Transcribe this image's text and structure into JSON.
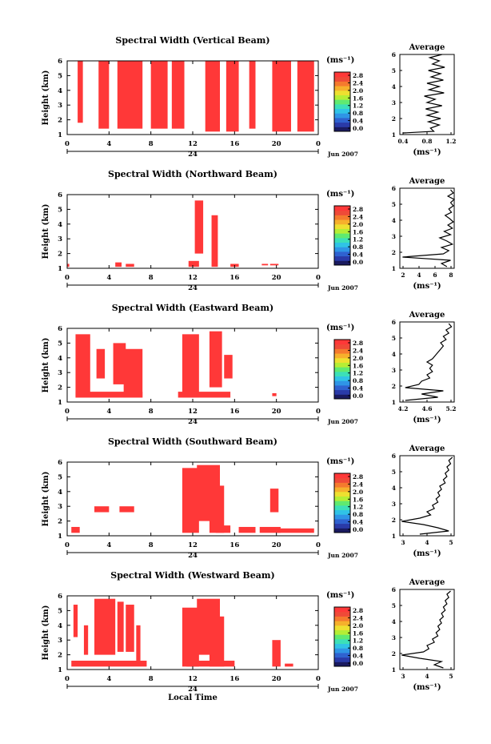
{
  "figure": {
    "xlabel": "Local Time",
    "date_label": "Jun 2007",
    "day_label": "24",
    "ylabel": "Height (km)",
    "avg_title": "Average",
    "unit_label": "(ms⁻¹)",
    "x_ticks": [
      "0",
      "4",
      "8",
      "12",
      "16",
      "20",
      "0"
    ],
    "y_ticks": [
      "1",
      "2",
      "3",
      "4",
      "5",
      "6"
    ],
    "colorbar_ticks": [
      "0.0",
      "0.4",
      "0.8",
      "1.2",
      "1.6",
      "2.0",
      "2.4",
      "2.8"
    ],
    "colorbar_colors": [
      "#1a1a60",
      "#2a3aa8",
      "#2f62d0",
      "#2f95e6",
      "#30c3e6",
      "#3ce0b8",
      "#60ea70",
      "#b5ee35",
      "#eee030",
      "#f6b02c",
      "#f57a2e",
      "#ef4a38",
      "#ff3838"
    ],
    "data_color": "#ff3838"
  },
  "chart_data": [
    {
      "type": "heatmap",
      "title": "Spectral Width (Vertical Beam)",
      "xlabel": "Local Time",
      "ylabel": "Height (km)",
      "xlim": [
        0,
        24
      ],
      "ylim": [
        1,
        6
      ],
      "colorbar": {
        "label": "(ms⁻¹)",
        "range": [
          0,
          2.8
        ]
      },
      "blocks": [
        [
          1,
          1.5,
          1.8,
          6
        ],
        [
          3,
          4,
          1.4,
          6
        ],
        [
          4.8,
          7.2,
          1.4,
          6
        ],
        [
          8,
          9.6,
          1.4,
          6
        ],
        [
          10,
          11.2,
          1.4,
          6
        ],
        [
          13.2,
          14.6,
          1.2,
          6
        ],
        [
          15.2,
          16.4,
          1.2,
          6
        ],
        [
          17.4,
          18,
          1.4,
          6
        ],
        [
          19.6,
          21.4,
          1.2,
          6
        ],
        [
          22,
          23.6,
          1.2,
          6
        ]
      ],
      "mean_value": 2.8,
      "avg_profile": {
        "xlim": [
          0.4,
          1.2
        ],
        "x_ticks": [
          "0.4",
          "0.8",
          "1.2"
        ],
        "height": [
          1.1,
          1.2,
          1.4,
          1.6,
          1.8,
          2.0,
          2.2,
          2.4,
          2.6,
          2.8,
          3.0,
          3.2,
          3.4,
          3.6,
          3.8,
          4.0,
          4.2,
          4.4,
          4.6,
          4.8,
          5.0,
          5.2,
          5.4,
          5.6,
          5.8,
          6.0
        ],
        "width": [
          0.45,
          0.9,
          0.85,
          0.98,
          0.82,
          1.0,
          0.8,
          0.96,
          0.78,
          1.02,
          0.8,
          0.92,
          0.76,
          1.05,
          0.83,
          0.98,
          0.8,
          1.04,
          0.86,
          1.0,
          0.82,
          1.06,
          0.88,
          0.98,
          0.84,
          1.02
        ]
      }
    },
    {
      "type": "heatmap",
      "title": "Spectral Width (Northward Beam)",
      "xlabel": "Local Time",
      "ylabel": "Height (km)",
      "xlim": [
        0,
        24
      ],
      "ylim": [
        1,
        6
      ],
      "colorbar": {
        "label": "(ms⁻¹)",
        "range": [
          0,
          2.8
        ]
      },
      "blocks": [
        [
          0,
          0.2,
          1.1,
          1.3
        ],
        [
          4.6,
          5.2,
          1.1,
          1.4
        ],
        [
          5.6,
          6.4,
          1.1,
          1.3
        ],
        [
          11.6,
          12.6,
          1.1,
          1.5
        ],
        [
          12.2,
          13.0,
          2.0,
          5.6
        ],
        [
          13.8,
          14.4,
          1.1,
          4.6
        ],
        [
          15.6,
          16.4,
          1.1,
          1.3
        ],
        [
          18.6,
          19.2,
          1.2,
          1.3
        ],
        [
          19.4,
          20.2,
          1.2,
          1.3
        ]
      ],
      "mean_value": 2.8,
      "avg_profile": {
        "xlim": [
          2,
          8
        ],
        "x_ticks": [
          "2",
          "4",
          "6",
          "8"
        ],
        "height": [
          1.1,
          1.3,
          1.5,
          1.7,
          1.9,
          2.1,
          2.3,
          2.5,
          2.7,
          2.9,
          3.1,
          3.3,
          3.5,
          3.7,
          3.9,
          4.1,
          4.3,
          4.5,
          4.7,
          4.9,
          5.1,
          5.3,
          5.5,
          5.7,
          5.9
        ],
        "width": [
          7.2,
          6.6,
          7.6,
          2.3,
          6.8,
          7.4,
          6.6,
          7.8,
          7.2,
          6.4,
          7.6,
          6.9,
          7.8,
          7.3,
          7.9,
          7.5,
          7.0,
          7.7,
          7.4,
          7.9,
          7.6,
          8.0,
          7.3,
          7.9,
          7.6
        ]
      }
    },
    {
      "type": "heatmap",
      "title": "Spectral Width (Eastward Beam)",
      "xlabel": "Local Time",
      "ylabel": "Height (km)",
      "xlim": [
        0,
        24
      ],
      "ylim": [
        1,
        6
      ],
      "colorbar": {
        "label": "(ms⁻¹)",
        "range": [
          0,
          2.8
        ]
      },
      "blocks": [
        [
          0.8,
          2.2,
          1.3,
          5.6
        ],
        [
          2.8,
          3.6,
          2.6,
          4.6
        ],
        [
          4.4,
          5.6,
          2.2,
          5.0
        ],
        [
          5.4,
          7.2,
          1.3,
          4.6
        ],
        [
          0.8,
          7.2,
          1.3,
          1.7
        ],
        [
          11.0,
          12.6,
          1.3,
          5.6
        ],
        [
          10.6,
          15.6,
          1.3,
          1.7
        ],
        [
          13.6,
          14.8,
          2.0,
          5.8
        ],
        [
          15.0,
          15.8,
          2.6,
          4.2
        ],
        [
          19.6,
          20.0,
          1.4,
          1.6
        ]
      ],
      "mean_value": 2.8,
      "avg_profile": {
        "xlim": [
          4.2,
          5.2
        ],
        "x_ticks": [
          "4.2",
          "4.6",
          "5.2"
        ],
        "height": [
          1.1,
          1.3,
          1.5,
          1.7,
          1.9,
          2.1,
          2.3,
          2.5,
          2.7,
          2.9,
          3.1,
          3.3,
          3.5,
          3.7,
          3.9,
          4.1,
          4.3,
          4.5,
          4.7,
          4.9,
          5.1,
          5.3,
          5.5,
          5.7,
          5.9
        ],
        "width": [
          4.3,
          4.9,
          4.6,
          5.0,
          4.3,
          4.55,
          4.6,
          4.75,
          4.7,
          4.8,
          4.75,
          4.8,
          4.7,
          4.8,
          4.85,
          4.9,
          4.95,
          5.0,
          4.95,
          5.05,
          5.0,
          5.1,
          5.05,
          5.15,
          5.1
        ]
      }
    },
    {
      "type": "heatmap",
      "title": "Spectral Width (Southward Beam)",
      "xlabel": "Local Time",
      "ylabel": "Height (km)",
      "xlim": [
        0,
        24
      ],
      "ylim": [
        1,
        6
      ],
      "colorbar": {
        "label": "(ms⁻¹)",
        "range": [
          0,
          2.8
        ]
      },
      "blocks": [
        [
          0.4,
          1.2,
          1.2,
          1.6
        ],
        [
          2.6,
          4.0,
          2.6,
          3.0
        ],
        [
          5.0,
          6.4,
          2.6,
          3.0
        ],
        [
          11.0,
          12.6,
          1.2,
          5.6
        ],
        [
          12.4,
          14.6,
          2.0,
          5.8
        ],
        [
          13.6,
          15.0,
          1.2,
          4.4
        ],
        [
          14.2,
          15.6,
          1.2,
          1.7
        ],
        [
          16.4,
          18.0,
          1.2,
          1.6
        ],
        [
          18.4,
          20.4,
          1.2,
          1.6
        ],
        [
          19.4,
          20.2,
          2.6,
          4.2
        ],
        [
          20.0,
          23.6,
          1.2,
          1.5
        ]
      ],
      "mean_value": 2.8,
      "avg_profile": {
        "xlim": [
          2.5,
          5.5
        ],
        "x_ticks": [
          "3",
          "4",
          "5"
        ],
        "height": [
          1.1,
          1.3,
          1.5,
          1.7,
          1.9,
          2.1,
          2.3,
          2.5,
          2.7,
          2.9,
          3.1,
          3.3,
          3.5,
          3.7,
          3.9,
          4.1,
          4.3,
          4.5,
          4.7,
          4.9,
          5.1,
          5.3,
          5.5,
          5.7,
          5.9
        ],
        "width": [
          3.6,
          5.2,
          4.6,
          3.8,
          2.6,
          3.6,
          4.2,
          4.0,
          4.4,
          4.3,
          4.6,
          4.5,
          4.7,
          4.6,
          4.8,
          4.7,
          5.0,
          4.9,
          5.1,
          5.0,
          5.2,
          5.1,
          5.3,
          5.2,
          5.4
        ]
      }
    },
    {
      "type": "heatmap",
      "title": "Spectral Width (Westward Beam)",
      "xlabel": "Local Time",
      "ylabel": "Height (km)",
      "xlim": [
        0,
        24
      ],
      "ylim": [
        1,
        6
      ],
      "colorbar": {
        "label": "(ms⁻¹)",
        "range": [
          0,
          2.8
        ]
      },
      "blocks": [
        [
          0.6,
          1.0,
          3.2,
          5.4
        ],
        [
          1.6,
          2.0,
          2.0,
          4.0
        ],
        [
          2.6,
          4.6,
          2.0,
          5.8
        ],
        [
          4.8,
          5.4,
          2.2,
          5.6
        ],
        [
          5.6,
          6.4,
          2.2,
          5.4
        ],
        [
          6.6,
          7.0,
          1.6,
          4.0
        ],
        [
          0.4,
          7.6,
          1.2,
          1.6
        ],
        [
          11.0,
          12.6,
          1.2,
          5.2
        ],
        [
          12.4,
          14.6,
          2.0,
          5.8
        ],
        [
          13.6,
          15.0,
          1.2,
          4.6
        ],
        [
          11.4,
          16.0,
          1.2,
          1.6
        ],
        [
          19.6,
          20.4,
          1.2,
          3.0
        ],
        [
          20.8,
          21.6,
          1.2,
          1.4
        ]
      ],
      "mean_value": 2.8,
      "avg_profile": {
        "xlim": [
          2.5,
          5.5
        ],
        "x_ticks": [
          "3",
          "4",
          "5"
        ],
        "height": [
          1.1,
          1.3,
          1.5,
          1.7,
          1.9,
          2.1,
          2.3,
          2.5,
          2.7,
          2.9,
          3.1,
          3.3,
          3.5,
          3.7,
          3.9,
          4.1,
          4.3,
          4.5,
          4.7,
          4.9,
          5.1,
          5.3,
          5.5,
          5.7,
          5.9
        ],
        "width": [
          4.9,
          4.4,
          4.8,
          3.6,
          2.6,
          3.8,
          4.1,
          4.0,
          4.4,
          4.3,
          4.6,
          4.5,
          4.7,
          4.6,
          4.8,
          4.7,
          4.9,
          4.8,
          5.0,
          4.9,
          5.1,
          5.0,
          5.2,
          5.1,
          5.3
        ]
      }
    }
  ]
}
